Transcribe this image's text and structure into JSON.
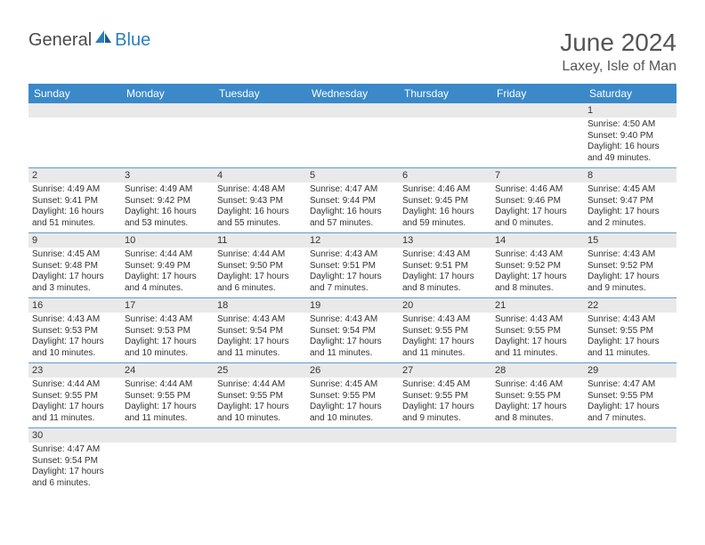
{
  "brand": {
    "general": "General",
    "blue": "Blue"
  },
  "title": "June 2024",
  "location": "Laxey, Isle of Man",
  "colors": {
    "header_bg": "#3b89c9",
    "header_text": "#ffffff",
    "daynum_bg": "#e9e9e9",
    "cell_border": "#5c9cd4",
    "text": "#333333",
    "logo_blue": "#2a7fba",
    "logo_gray": "#4a4a4a"
  },
  "typography": {
    "title_fontsize": 28,
    "location_fontsize": 16,
    "dayhead_fontsize": 12,
    "daynum_fontsize": 11,
    "cell_fontsize": 10
  },
  "day_names": [
    "Sunday",
    "Monday",
    "Tuesday",
    "Wednesday",
    "Thursday",
    "Friday",
    "Saturday"
  ],
  "weeks": [
    [
      null,
      null,
      null,
      null,
      null,
      null,
      {
        "n": "1",
        "sunrise": "Sunrise: 4:50 AM",
        "sunset": "Sunset: 9:40 PM",
        "day1": "Daylight: 16 hours",
        "day2": "and 49 minutes."
      }
    ],
    [
      {
        "n": "2",
        "sunrise": "Sunrise: 4:49 AM",
        "sunset": "Sunset: 9:41 PM",
        "day1": "Daylight: 16 hours",
        "day2": "and 51 minutes."
      },
      {
        "n": "3",
        "sunrise": "Sunrise: 4:49 AM",
        "sunset": "Sunset: 9:42 PM",
        "day1": "Daylight: 16 hours",
        "day2": "and 53 minutes."
      },
      {
        "n": "4",
        "sunrise": "Sunrise: 4:48 AM",
        "sunset": "Sunset: 9:43 PM",
        "day1": "Daylight: 16 hours",
        "day2": "and 55 minutes."
      },
      {
        "n": "5",
        "sunrise": "Sunrise: 4:47 AM",
        "sunset": "Sunset: 9:44 PM",
        "day1": "Daylight: 16 hours",
        "day2": "and 57 minutes."
      },
      {
        "n": "6",
        "sunrise": "Sunrise: 4:46 AM",
        "sunset": "Sunset: 9:45 PM",
        "day1": "Daylight: 16 hours",
        "day2": "and 59 minutes."
      },
      {
        "n": "7",
        "sunrise": "Sunrise: 4:46 AM",
        "sunset": "Sunset: 9:46 PM",
        "day1": "Daylight: 17 hours",
        "day2": "and 0 minutes."
      },
      {
        "n": "8",
        "sunrise": "Sunrise: 4:45 AM",
        "sunset": "Sunset: 9:47 PM",
        "day1": "Daylight: 17 hours",
        "day2": "and 2 minutes."
      }
    ],
    [
      {
        "n": "9",
        "sunrise": "Sunrise: 4:45 AM",
        "sunset": "Sunset: 9:48 PM",
        "day1": "Daylight: 17 hours",
        "day2": "and 3 minutes."
      },
      {
        "n": "10",
        "sunrise": "Sunrise: 4:44 AM",
        "sunset": "Sunset: 9:49 PM",
        "day1": "Daylight: 17 hours",
        "day2": "and 4 minutes."
      },
      {
        "n": "11",
        "sunrise": "Sunrise: 4:44 AM",
        "sunset": "Sunset: 9:50 PM",
        "day1": "Daylight: 17 hours",
        "day2": "and 6 minutes."
      },
      {
        "n": "12",
        "sunrise": "Sunrise: 4:43 AM",
        "sunset": "Sunset: 9:51 PM",
        "day1": "Daylight: 17 hours",
        "day2": "and 7 minutes."
      },
      {
        "n": "13",
        "sunrise": "Sunrise: 4:43 AM",
        "sunset": "Sunset: 9:51 PM",
        "day1": "Daylight: 17 hours",
        "day2": "and 8 minutes."
      },
      {
        "n": "14",
        "sunrise": "Sunrise: 4:43 AM",
        "sunset": "Sunset: 9:52 PM",
        "day1": "Daylight: 17 hours",
        "day2": "and 8 minutes."
      },
      {
        "n": "15",
        "sunrise": "Sunrise: 4:43 AM",
        "sunset": "Sunset: 9:52 PM",
        "day1": "Daylight: 17 hours",
        "day2": "and 9 minutes."
      }
    ],
    [
      {
        "n": "16",
        "sunrise": "Sunrise: 4:43 AM",
        "sunset": "Sunset: 9:53 PM",
        "day1": "Daylight: 17 hours",
        "day2": "and 10 minutes."
      },
      {
        "n": "17",
        "sunrise": "Sunrise: 4:43 AM",
        "sunset": "Sunset: 9:53 PM",
        "day1": "Daylight: 17 hours",
        "day2": "and 10 minutes."
      },
      {
        "n": "18",
        "sunrise": "Sunrise: 4:43 AM",
        "sunset": "Sunset: 9:54 PM",
        "day1": "Daylight: 17 hours",
        "day2": "and 11 minutes."
      },
      {
        "n": "19",
        "sunrise": "Sunrise: 4:43 AM",
        "sunset": "Sunset: 9:54 PM",
        "day1": "Daylight: 17 hours",
        "day2": "and 11 minutes."
      },
      {
        "n": "20",
        "sunrise": "Sunrise: 4:43 AM",
        "sunset": "Sunset: 9:55 PM",
        "day1": "Daylight: 17 hours",
        "day2": "and 11 minutes."
      },
      {
        "n": "21",
        "sunrise": "Sunrise: 4:43 AM",
        "sunset": "Sunset: 9:55 PM",
        "day1": "Daylight: 17 hours",
        "day2": "and 11 minutes."
      },
      {
        "n": "22",
        "sunrise": "Sunrise: 4:43 AM",
        "sunset": "Sunset: 9:55 PM",
        "day1": "Daylight: 17 hours",
        "day2": "and 11 minutes."
      }
    ],
    [
      {
        "n": "23",
        "sunrise": "Sunrise: 4:44 AM",
        "sunset": "Sunset: 9:55 PM",
        "day1": "Daylight: 17 hours",
        "day2": "and 11 minutes."
      },
      {
        "n": "24",
        "sunrise": "Sunrise: 4:44 AM",
        "sunset": "Sunset: 9:55 PM",
        "day1": "Daylight: 17 hours",
        "day2": "and 11 minutes."
      },
      {
        "n": "25",
        "sunrise": "Sunrise: 4:44 AM",
        "sunset": "Sunset: 9:55 PM",
        "day1": "Daylight: 17 hours",
        "day2": "and 10 minutes."
      },
      {
        "n": "26",
        "sunrise": "Sunrise: 4:45 AM",
        "sunset": "Sunset: 9:55 PM",
        "day1": "Daylight: 17 hours",
        "day2": "and 10 minutes."
      },
      {
        "n": "27",
        "sunrise": "Sunrise: 4:45 AM",
        "sunset": "Sunset: 9:55 PM",
        "day1": "Daylight: 17 hours",
        "day2": "and 9 minutes."
      },
      {
        "n": "28",
        "sunrise": "Sunrise: 4:46 AM",
        "sunset": "Sunset: 9:55 PM",
        "day1": "Daylight: 17 hours",
        "day2": "and 8 minutes."
      },
      {
        "n": "29",
        "sunrise": "Sunrise: 4:47 AM",
        "sunset": "Sunset: 9:55 PM",
        "day1": "Daylight: 17 hours",
        "day2": "and 7 minutes."
      }
    ],
    [
      {
        "n": "30",
        "sunrise": "Sunrise: 4:47 AM",
        "sunset": "Sunset: 9:54 PM",
        "day1": "Daylight: 17 hours",
        "day2": "and 6 minutes."
      },
      null,
      null,
      null,
      null,
      null,
      null
    ]
  ]
}
